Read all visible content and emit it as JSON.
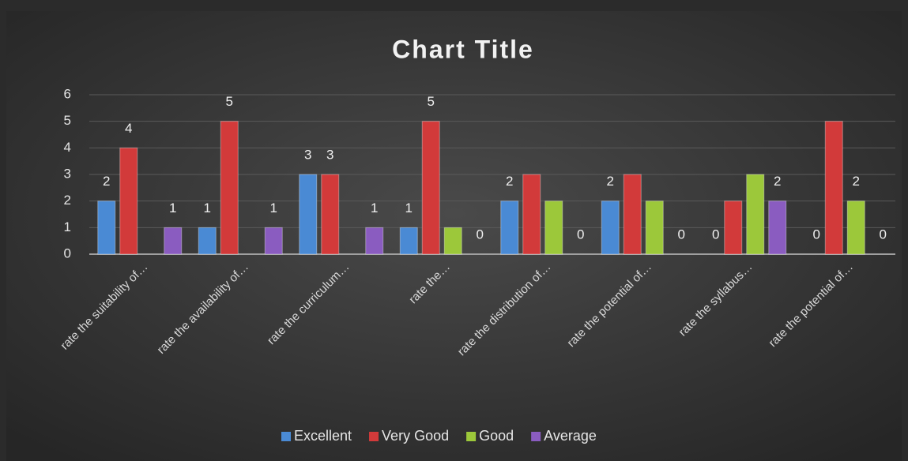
{
  "chart_data": {
    "type": "bar",
    "title": "Chart Title",
    "categories": [
      "rate the suitability of…",
      "rate the availability of…",
      "rate the curriculum…",
      "rate the…",
      "rate the distribution of…",
      "rate the potential of…",
      "rate the syllabus…",
      "rate the potential of…"
    ],
    "series": [
      {
        "name": "Excellent",
        "color": "#4a8ad4",
        "values": [
          2,
          1,
          3,
          1,
          2,
          2,
          0,
          0
        ],
        "value_labels": [
          "2",
          "1",
          "3",
          "1",
          "2",
          "2",
          "0",
          "0"
        ]
      },
      {
        "name": "Very Good",
        "color": "#d23a3a",
        "values": [
          4,
          5,
          3,
          5,
          3,
          3,
          2,
          5
        ],
        "value_labels": [
          "4",
          "5",
          "3",
          "5",
          null,
          null,
          null,
          null
        ]
      },
      {
        "name": "Good",
        "color": "#9cc83a",
        "values": [
          null,
          null,
          null,
          1,
          2,
          2,
          3,
          2
        ],
        "value_labels": [
          null,
          null,
          null,
          null,
          null,
          null,
          null,
          "2"
        ]
      },
      {
        "name": "Average",
        "color": "#8a5cc0",
        "values": [
          1,
          1,
          1,
          0,
          0,
          0,
          2,
          0
        ],
        "value_labels": [
          "1",
          "1",
          "1",
          "0",
          "0",
          "0",
          "2",
          "0"
        ]
      }
    ],
    "ylim": [
      0,
      6
    ],
    "yticks": [
      0,
      1,
      2,
      3,
      4,
      5,
      6
    ],
    "grid": true,
    "legend": "bottom"
  }
}
